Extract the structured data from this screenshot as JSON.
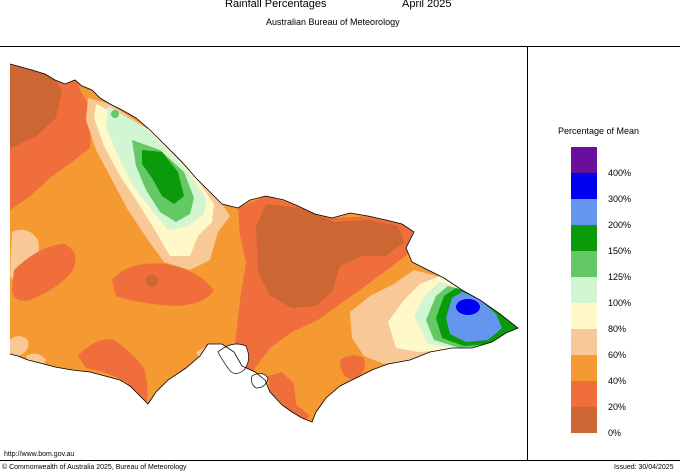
{
  "header": {
    "title": "Rainfall Percentages",
    "date": "April 2025",
    "subtitle": "Australian Bureau of Meteorology"
  },
  "legend": {
    "title": "Percentage of Mean",
    "items": [
      {
        "label": "400%",
        "color": "#6a0f9c"
      },
      {
        "label": "300%",
        "color": "#0000f0"
      },
      {
        "label": "200%",
        "color": "#6496f0"
      },
      {
        "label": "150%",
        "color": "#0a9a0a"
      },
      {
        "label": "125%",
        "color": "#64c864"
      },
      {
        "label": "100%",
        "color": "#d2f5d2"
      },
      {
        "label": "80%",
        "color": "#fff8c8"
      },
      {
        "label": "60%",
        "color": "#f8c896"
      },
      {
        "label": "40%",
        "color": "#f59a32"
      },
      {
        "label": "20%",
        "color": "#f06e3c"
      },
      {
        "label": "0%",
        "color": "#cc6633"
      }
    ]
  },
  "footer": {
    "url": "http://www.bom.gov.au",
    "copyright": "© Commonwealth of Australia 2025, Bureau of Meteorology",
    "issued": "Issued: 30/04/2025"
  }
}
